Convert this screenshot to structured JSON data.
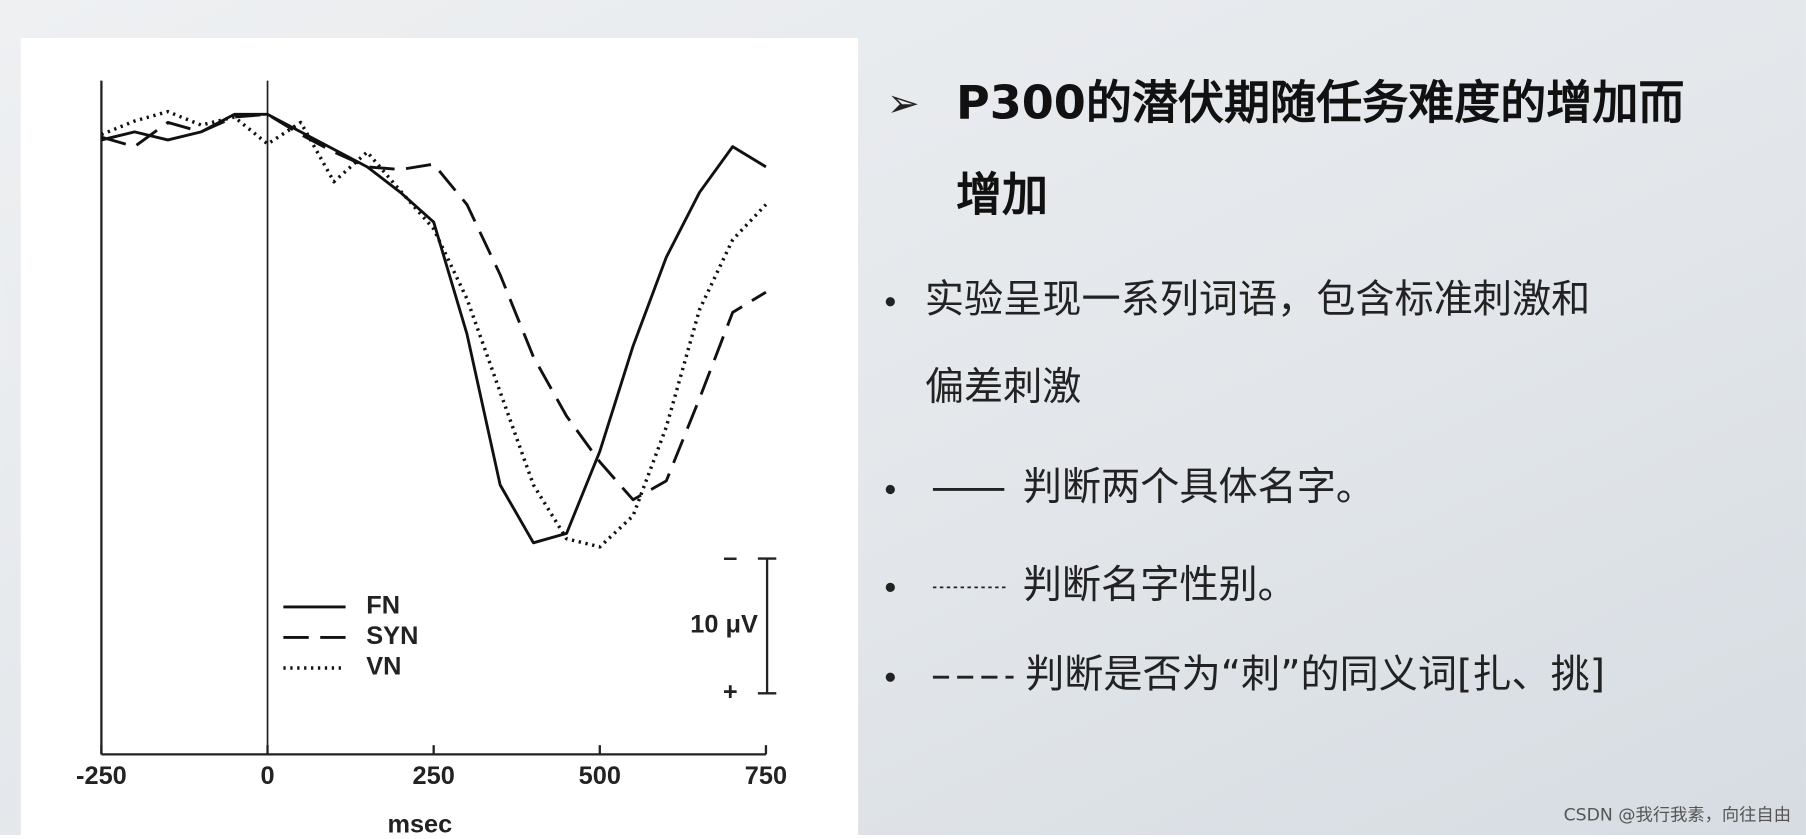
{
  "slide": {
    "heading": [
      "P300的潜伏期随任务难度的增加而",
      "增加"
    ],
    "bullets": [
      {
        "lines": [
          "实验呈现一系列词语，包含标准刺激和",
          "偏差刺激"
        ]
      },
      {
        "lines": [
          "判断两个具体名字。"
        ]
      },
      {
        "lines": [
          "判断名字性别。"
        ]
      },
      {
        "lines": [
          "判断是否为“刺”的同义词[扎、挑]"
        ]
      }
    ],
    "watermark": "CSDN @我行我素，向往自由"
  },
  "chart_data": {
    "type": "line",
    "x_label": "msec",
    "x": [
      -250,
      -200,
      -150,
      -100,
      -50,
      0,
      50,
      100,
      150,
      200,
      250,
      300,
      350,
      400,
      450,
      500,
      550,
      600,
      650,
      700,
      750
    ],
    "series": [
      {
        "name": "FN",
        "color": "#111111",
        "dash": "solid",
        "values": [
          0.4,
          -0.2,
          0.4,
          -0.2,
          -1.5,
          -1.5,
          -0.2,
          1.1,
          2.4,
          4.3,
          6.5,
          14.8,
          26,
          30.3,
          29.6,
          23.5,
          15.7,
          9.1,
          4.3,
          0.9,
          2.4
        ]
      },
      {
        "name": "SYN",
        "color": "#111111",
        "dash": "dashed",
        "values": [
          0.2,
          0.9,
          -0.9,
          -0.2,
          -1.3,
          -1.5,
          0,
          1.3,
          2.4,
          2.6,
          2.2,
          5.2,
          10.4,
          16.5,
          20.9,
          24.3,
          27.1,
          25.7,
          19.6,
          13.2,
          11.7
        ]
      },
      {
        "name": "VN",
        "color": "#111111",
        "dash": "dotted",
        "values": [
          0,
          -1,
          -1.7,
          -0.7,
          -1.3,
          0.7,
          -0.9,
          3.5,
          1.3,
          4.2,
          7,
          12.2,
          19.1,
          26,
          30,
          30.6,
          28.3,
          21.7,
          13,
          7.8,
          5.2
        ]
      }
    ],
    "xlim": [
      -250,
      750
    ],
    "xticks": [
      -250,
      0,
      250,
      500,
      750
    ],
    "ylim": [
      -4,
      46
    ],
    "negative_up": true,
    "scale_bar": {
      "value": 10,
      "label": "10 μV",
      "top_label": "–",
      "bottom_label": "+"
    }
  }
}
